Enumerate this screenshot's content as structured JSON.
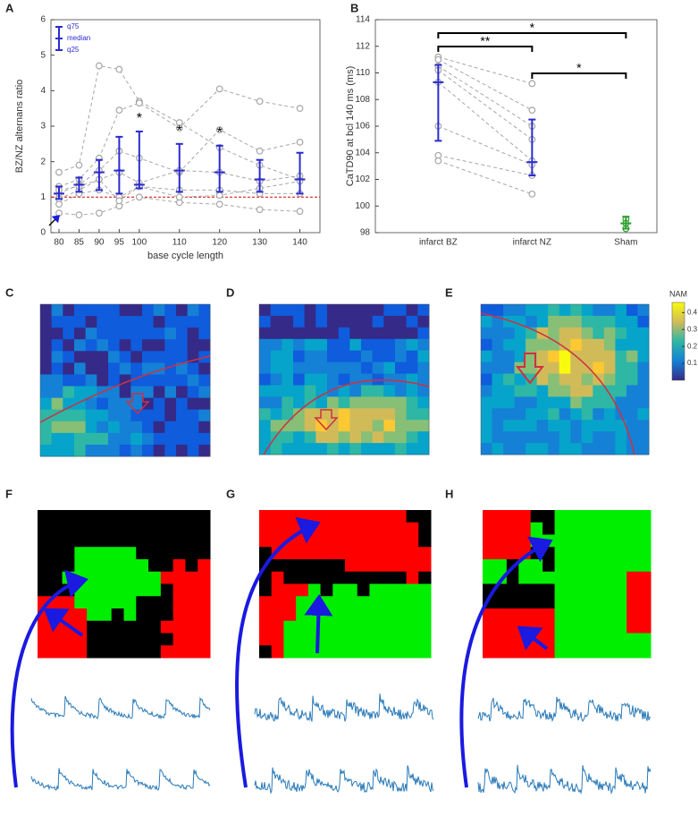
{
  "panel_labels": [
    "A",
    "B",
    "C",
    "D",
    "E",
    "F",
    "G",
    "H"
  ],
  "chart_data": [
    {
      "type": "line",
      "xlabel": "base cycle length",
      "ylabel": "BZ/NZ alternans ratio",
      "x": [
        80,
        85,
        90,
        95,
        100,
        110,
        120,
        130,
        140
      ],
      "xlim": [
        78,
        145
      ],
      "xticks": [
        80,
        85,
        90,
        95,
        100,
        110,
        120,
        130,
        140
      ],
      "ylim": [
        0,
        6
      ],
      "yticks": [
        0,
        1,
        2,
        3,
        4,
        5,
        6
      ],
      "series": [
        {
          "color": "#a6a6a6",
          "values": [
            1.7,
            1.9,
            4.7,
            4.6,
            3.7,
            3.1,
            2.4,
            1.9,
            1.5
          ]
        },
        {
          "color": "#a6a6a6",
          "values": [
            1.3,
            1.5,
            2.1,
            3.45,
            3.65,
            2.95,
            4.05,
            3.7,
            3.5
          ]
        },
        {
          "color": "#a6a6a6",
          "values": [
            1.1,
            1.35,
            1.75,
            2.3,
            2.1,
            1.7,
            2.9,
            2.3,
            2.55
          ]
        },
        {
          "color": "#a6a6a6",
          "values": [
            0.95,
            1.2,
            1.5,
            1.7,
            1.4,
            1.75,
            1.7,
            1.45,
            1.6
          ]
        },
        {
          "color": "#a6a6a6",
          "values": [
            0.8,
            1.1,
            1.2,
            1.0,
            1.3,
            1.2,
            1.2,
            1.1,
            1.1
          ]
        },
        {
          "color": "#a6a6a6",
          "values": [
            0.55,
            0.5,
            0.55,
            0.75,
            1.0,
            0.85,
            0.8,
            0.65,
            0.6
          ]
        },
        {
          "color": "#a6a6a6",
          "values": [
            1.2,
            1.3,
            1.5,
            0.9,
            1.3,
            1.0,
            1.05,
            1.25,
            1.45
          ]
        }
      ],
      "summary_color": "#2b2bd0",
      "median": [
        1.1,
        1.35,
        1.7,
        1.75,
        1.35,
        1.75,
        1.7,
        1.5,
        1.5
      ],
      "q25": [
        0.95,
        1.15,
        1.2,
        1.1,
        1.25,
        1.15,
        1.15,
        1.15,
        1.1
      ],
      "q75": [
        1.3,
        1.55,
        2.05,
        2.7,
        2.85,
        2.5,
        2.45,
        2.05,
        2.25
      ],
      "legend_labels": [
        "q75",
        "median",
        "q25"
      ],
      "reference_line": {
        "value": 1,
        "color": "#e02020"
      },
      "annotations": [
        {
          "x": 100,
          "text": "*"
        },
        {
          "x": 110,
          "text": "*"
        },
        {
          "x": 120,
          "text": "*"
        }
      ]
    },
    {
      "type": "paired",
      "ylabel": "CaTD90 at bcl 140 ms (ms)",
      "categories": [
        "infarct BZ",
        "infarct NZ",
        "Sham"
      ],
      "ylim": [
        98,
        114
      ],
      "yticks": [
        98,
        100,
        102,
        104,
        106,
        108,
        110,
        112,
        114
      ],
      "series": [
        {
          "color": "#a6a6a6",
          "values": [
            111.2,
            109.2,
            null
          ]
        },
        {
          "color": "#a6a6a6",
          "values": [
            111.0,
            107.2,
            null
          ]
        },
        {
          "color": "#a6a6a6",
          "values": [
            110.5,
            106.0,
            null
          ]
        },
        {
          "color": "#a6a6a6",
          "values": [
            110.2,
            105.0,
            null
          ]
        },
        {
          "color": "#a6a6a6",
          "values": [
            109.3,
            103.4,
            null
          ]
        },
        {
          "color": "#a6a6a6",
          "values": [
            106.0,
            103.1,
            null
          ]
        },
        {
          "color": "#a6a6a6",
          "values": [
            103.8,
            102.3,
            null
          ]
        },
        {
          "color": "#a6a6a6",
          "values": [
            103.4,
            100.9,
            null
          ]
        },
        {
          "color": "#2ca02c",
          "values": [
            null,
            null,
            99.0
          ]
        },
        {
          "color": "#2ca02c",
          "values": [
            null,
            null,
            98.7
          ]
        },
        {
          "color": "#2ca02c",
          "values": [
            null,
            null,
            98.3
          ]
        }
      ],
      "summary_colors": [
        "#2b2bd0",
        "#2b2bd0",
        "#2ca02c"
      ],
      "median": [
        109.3,
        103.3,
        98.7
      ],
      "q25": [
        104.9,
        102.3,
        98.3
      ],
      "q75": [
        110.6,
        106.5,
        99.2
      ],
      "brackets": [
        {
          "from": 0,
          "to": 2,
          "text": "*"
        },
        {
          "from": 0,
          "to": 1,
          "text": "**"
        },
        {
          "from": 1,
          "to": 2,
          "text": "*"
        }
      ]
    },
    {
      "type": "colorbar",
      "title": "NAM",
      "ylim": [
        0,
        0.46
      ],
      "yticks": [
        0.1,
        0.2,
        0.3,
        0.4
      ]
    }
  ]
}
